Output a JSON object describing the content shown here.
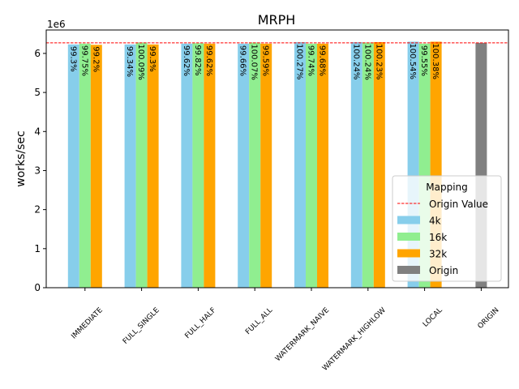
{
  "chart_data": {
    "type": "bar",
    "title": "MRPH",
    "ylabel": "works/sec",
    "xlabel": "",
    "y_offset_label": "1e6",
    "ylim": [
      0,
      6.6
    ],
    "yticks": [
      "0",
      "1",
      "2",
      "3",
      "4",
      "5",
      "6"
    ],
    "categories": [
      "IMMEDIATE",
      "FULL_SINGLE",
      "FULL_HALF",
      "FULL_ALL",
      "WATERMARK_NAIVE",
      "WATERMARK_HIGHLOW",
      "LOCAL",
      "ORIGIN"
    ],
    "reference_line": {
      "name": "Origin Value",
      "value": 6.27,
      "color": "#ff0000",
      "style": "dashed"
    },
    "series": [
      {
        "name": "4k",
        "color": "#87ceeb",
        "values": [
          6.23,
          6.23,
          6.25,
          6.25,
          6.29,
          6.29,
          6.3,
          null
        ],
        "labels": [
          "99.3%",
          "99.34%",
          "99.62%",
          "99.66%",
          "100.27%",
          "100.24%",
          "100.54%",
          ""
        ]
      },
      {
        "name": "16k",
        "color": "#90ee90",
        "values": [
          6.25,
          6.28,
          6.26,
          6.28,
          6.25,
          6.28,
          6.25,
          null
        ],
        "labels": [
          "99.75%",
          "100.09%",
          "99.82%",
          "100.07%",
          "99.74%",
          "100.24%",
          "99.55%",
          ""
        ]
      },
      {
        "name": "32k",
        "color": "#ffa500",
        "values": [
          6.22,
          6.23,
          6.25,
          6.25,
          6.25,
          6.29,
          6.3,
          null
        ],
        "labels": [
          "99.2%",
          "99.3%",
          "99.62%",
          "99.59%",
          "99.68%",
          "100.23%",
          "100.38%",
          ""
        ]
      },
      {
        "name": "Origin",
        "color": "#808080",
        "values": [
          null,
          null,
          null,
          null,
          null,
          null,
          null,
          6.27
        ],
        "labels": [
          "",
          "",
          "",
          "",
          "",
          "",
          "",
          ""
        ]
      }
    ],
    "legend": {
      "title": "Mapping",
      "placement": "lower-right"
    },
    "grid": false
  }
}
